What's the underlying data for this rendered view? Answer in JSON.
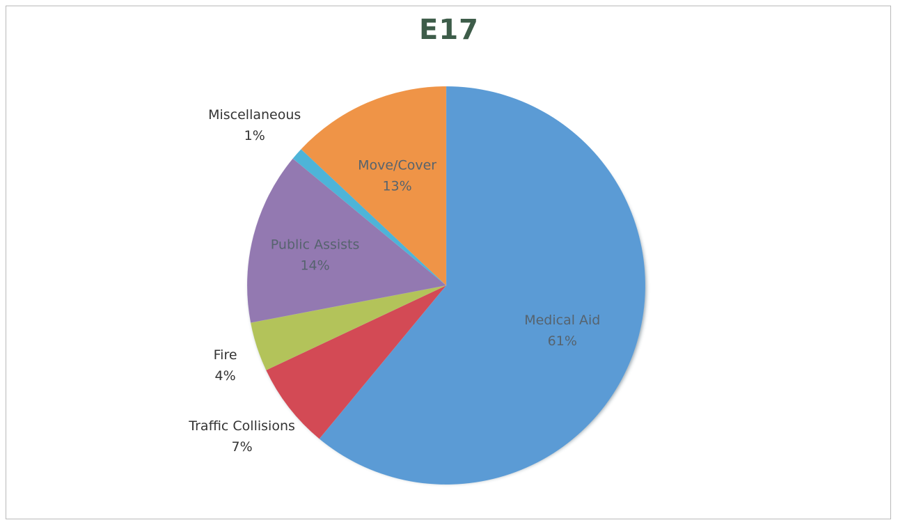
{
  "chart_data": {
    "type": "pie",
    "title": "E17",
    "slices": [
      {
        "label": "Medical Aid",
        "value": 61,
        "value_label": "61%",
        "color": "#5b9bd5"
      },
      {
        "label": "Traffic Collisions",
        "value": 7,
        "value_label": "7%",
        "color": "#d34a55"
      },
      {
        "label": "Fire",
        "value": 4,
        "value_label": "4%",
        "color": "#b3c35a"
      },
      {
        "label": "Public Assists",
        "value": 14,
        "value_label": "14%",
        "color": "#9379b1"
      },
      {
        "label": "Miscellaneous",
        "value": 1,
        "value_label": "1%",
        "color": "#4eb4d8"
      },
      {
        "label": "Move/Cover",
        "value": 13,
        "value_label": "13%",
        "color": "#ef9447"
      }
    ],
    "legend": "none",
    "data_labels": "category name and percentage"
  },
  "colors": {
    "title": "#3d5c49",
    "label_inside": "#56636e",
    "label_outside": "#333333",
    "frame": "#b8b8b8"
  }
}
